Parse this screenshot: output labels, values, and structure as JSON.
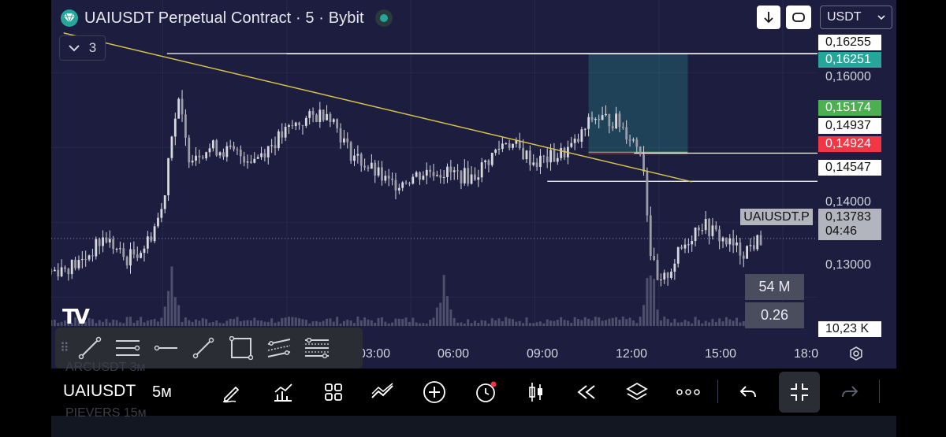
{
  "header": {
    "title": "UAIUSDT Perpetual Contract · 5 · Bybit",
    "indicator_count": "3",
    "currency_select": "USDT",
    "logo_icon": "tradingview-diamond-icon",
    "status_color": "#26a69a"
  },
  "price_scale": {
    "labels": [
      {
        "text": "0,16255",
        "style": "white"
      },
      {
        "text": "0,16251",
        "style": "teal"
      },
      {
        "text": "0,16000",
        "style": "plain"
      },
      {
        "text": "0,15174",
        "style": "green"
      },
      {
        "text": "0,14937",
        "style": "white"
      },
      {
        "text": "0,14924",
        "style": "red"
      },
      {
        "text": "0,14547",
        "style": "white"
      },
      {
        "text": "0,14000",
        "style": "plain"
      },
      {
        "text": "0,13000",
        "style": "plain"
      },
      {
        "text": "10,23 K",
        "style": "white"
      }
    ],
    "current_price": "0,13783",
    "countdown": "04:46",
    "symbol_tag": "UAIUSDT.P"
  },
  "volume_panel": {
    "value_a": "54 M",
    "value_b": "0.26"
  },
  "time_axis": [
    "03:00",
    "06:00",
    "09:00",
    "12:00",
    "15:00",
    "18:0"
  ],
  "drawing_toolbar": {
    "tools": [
      "trend-line-tool-icon",
      "horizontal-lines-tool-icon",
      "horizontal-ray-tool-icon",
      "line-segment-tool-icon",
      "rectangle-tool-icon",
      "parallel-channel-tool-icon",
      "fib-tool-icon"
    ]
  },
  "bottom_bar": {
    "symbol": "UAIUSDT",
    "interval": "5м",
    "ghost_rows": [
      "ARCUSDT   3м",
      "PIEVERS    15м"
    ],
    "icons": [
      "draw-icon",
      "indicators-icon",
      "templates-icon",
      "compare-icon",
      "add-icon",
      "alert-icon",
      "candles-icon",
      "replay-icon",
      "layers-icon",
      "more-icon",
      "undo-icon",
      "minimize-icon",
      "redo-icon"
    ]
  },
  "chart_data": {
    "type": "candlestick",
    "symbol": "UAIUSDT.P",
    "interval": "5",
    "x_axis_ticks": [
      "03:00",
      "06:00",
      "09:00",
      "12:00",
      "15:00",
      "18:0"
    ],
    "y_axis_ticks": [
      0.16,
      0.14,
      0.13
    ],
    "ylim": [
      0.1255,
      0.1655
    ],
    "last_price": 0.13783,
    "x_range_hours": [
      0.3,
      18.8
    ],
    "segments": [
      {
        "t": 0.3,
        "p": 0.1335
      },
      {
        "t": 1.0,
        "p": 0.1345
      },
      {
        "t": 1.6,
        "p": 0.138
      },
      {
        "t": 2.1,
        "p": 0.135
      },
      {
        "t": 2.6,
        "p": 0.137
      },
      {
        "t": 3.0,
        "p": 0.142
      },
      {
        "t": 3.2,
        "p": 0.152
      },
      {
        "t": 3.4,
        "p": 0.156
      },
      {
        "t": 3.6,
        "p": 0.149
      },
      {
        "t": 4.2,
        "p": 0.15
      },
      {
        "t": 5.2,
        "p": 0.1485
      },
      {
        "t": 6.2,
        "p": 0.153
      },
      {
        "t": 7.0,
        "p": 0.155
      },
      {
        "t": 7.5,
        "p": 0.1495
      },
      {
        "t": 8.5,
        "p": 0.145
      },
      {
        "t": 9.5,
        "p": 0.147
      },
      {
        "t": 10.5,
        "p": 0.146
      },
      {
        "t": 11.3,
        "p": 0.151
      },
      {
        "t": 12.0,
        "p": 0.148
      },
      {
        "t": 12.6,
        "p": 0.149
      },
      {
        "t": 13.0,
        "p": 0.1505
      },
      {
        "t": 13.4,
        "p": 0.154
      },
      {
        "t": 14.0,
        "p": 0.1535
      },
      {
        "t": 14.6,
        "p": 0.1495
      },
      {
        "t": 14.8,
        "p": 0.136
      },
      {
        "t": 15.0,
        "p": 0.131
      },
      {
        "t": 15.5,
        "p": 0.136
      },
      {
        "t": 16.0,
        "p": 0.14
      },
      {
        "t": 16.6,
        "p": 0.1375
      },
      {
        "t": 17.0,
        "p": 0.136
      },
      {
        "t": 17.5,
        "p": 0.1378
      }
    ],
    "volume_spikes_hours": [
      3.2,
      9.8,
      14.8
    ]
  },
  "annotations": {
    "horizontal_levels": [
      0.16255,
      0.16251,
      0.14924,
      0.14547
    ],
    "trendline_color": "#d8c44a",
    "long_position": {
      "entry": 0.14937,
      "target": 0.16251,
      "stop": 0.14924
    },
    "colors": {
      "up": "#26a69a",
      "down": "#f23645",
      "candle": "#d8d9de",
      "background": "#1c1d3f"
    }
  }
}
